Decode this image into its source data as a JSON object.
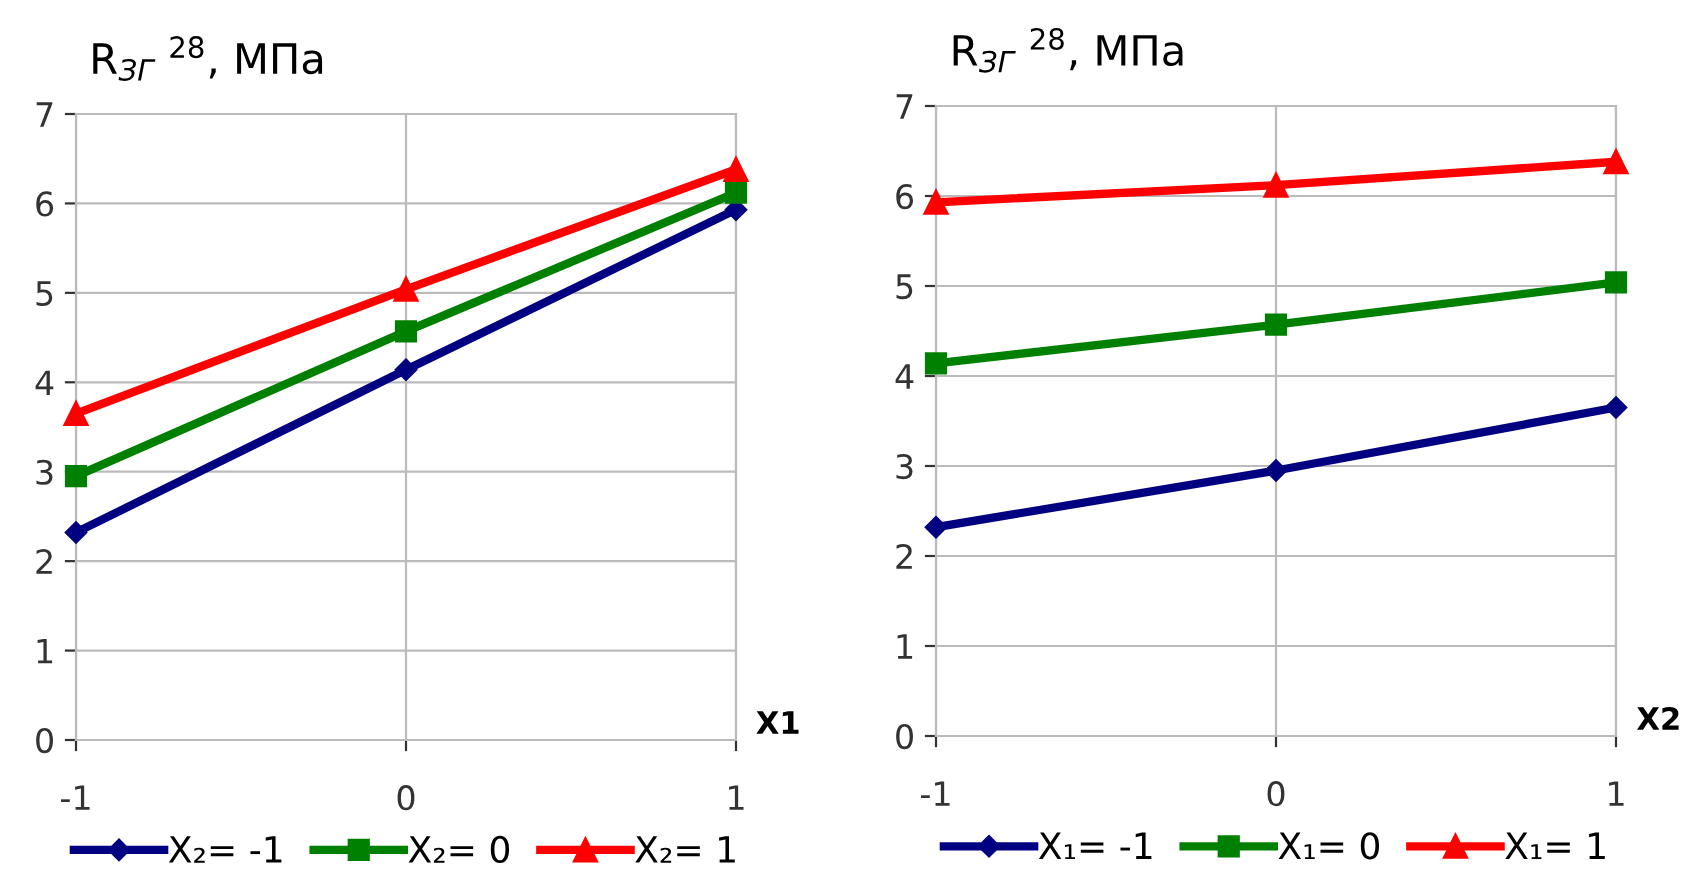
{
  "chart_data": [
    {
      "type": "line",
      "title": "R$_{ЗГ}$ $^{28}$, МПа",
      "xlabel": "X1",
      "x": [
        -1,
        0,
        1
      ],
      "xlim": [
        -1,
        1
      ],
      "xticks": [
        -1,
        0,
        1
      ],
      "ylim": [
        0,
        7
      ],
      "yticks": [
        0,
        1,
        2,
        3,
        4,
        5,
        6,
        7
      ],
      "grid": true,
      "legend": "bottom",
      "series": [
        {
          "name": "X₂= -1",
          "color": "#000080",
          "marker": "diamond",
          "values": [
            2.32,
            4.14,
            5.93
          ]
        },
        {
          "name": "X₂= 0",
          "color": "#008000",
          "marker": "square",
          "values": [
            2.95,
            4.57,
            6.12
          ]
        },
        {
          "name": "X₂= 1",
          "color": "#ff0000",
          "marker": "triangle",
          "values": [
            3.65,
            5.04,
            6.38
          ]
        }
      ]
    },
    {
      "type": "line",
      "title": "R$_{ЗГ}$ $^{28}$, МПа",
      "xlabel": "X2",
      "x": [
        -1,
        0,
        1
      ],
      "xlim": [
        -1,
        1
      ],
      "xticks": [
        -1,
        0,
        1
      ],
      "ylim": [
        0,
        7
      ],
      "yticks": [
        0,
        1,
        2,
        3,
        4,
        5,
        6,
        7
      ],
      "grid": true,
      "legend": "bottom",
      "series": [
        {
          "name": "X₁= -1",
          "color": "#000080",
          "marker": "diamond",
          "values": [
            2.32,
            2.95,
            3.65
          ]
        },
        {
          "name": "X₁= 0",
          "color": "#008000",
          "marker": "square",
          "values": [
            4.14,
            4.57,
            5.04
          ]
        },
        {
          "name": "X₁= 1",
          "color": "#ff0000",
          "marker": "triangle",
          "values": [
            5.93,
            6.12,
            6.38
          ]
        }
      ]
    }
  ]
}
